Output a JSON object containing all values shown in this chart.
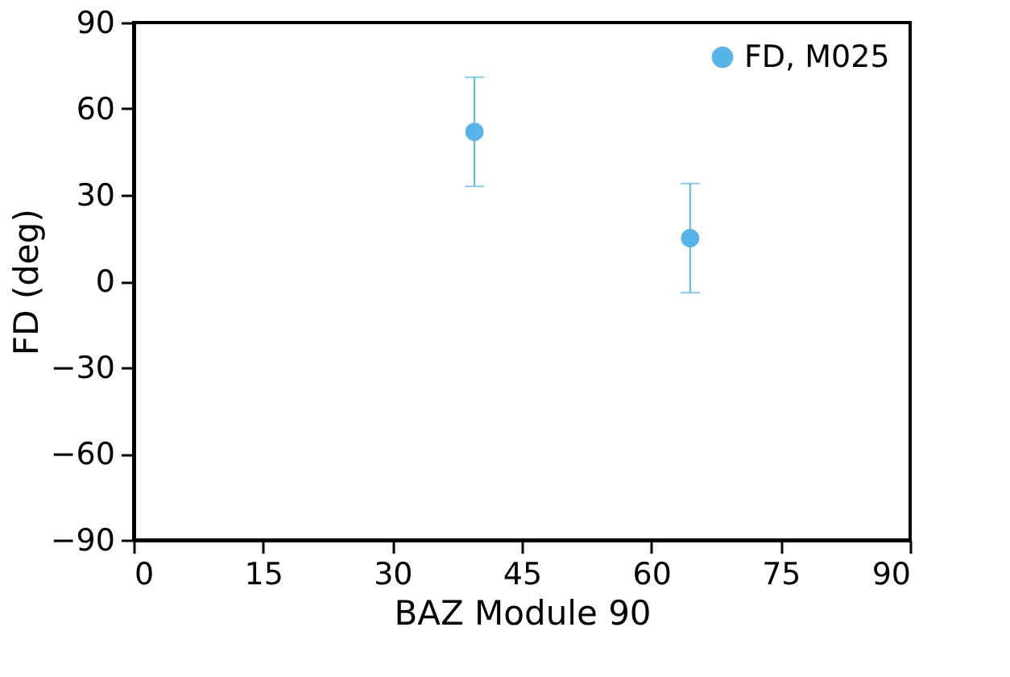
{
  "chart_data": {
    "type": "scatter",
    "xlabel": "BAZ Module 90",
    "ylabel": "FD (deg)",
    "x": [
      39.5,
      64.5
    ],
    "series": [
      {
        "name": "FD, M025",
        "color": "#56b4e9",
        "values": [
          52,
          15
        ],
        "errors": [
          19,
          19
        ]
      }
    ],
    "xlim": [
      0,
      90
    ],
    "xticks": [
      0,
      15,
      30,
      45,
      60,
      75,
      90
    ],
    "ylim": [
      -90,
      90
    ],
    "yticks": [
      -90,
      -60,
      -30,
      0,
      30,
      60,
      90
    ],
    "grid": false,
    "legend": "top right",
    "marker": "circle"
  }
}
